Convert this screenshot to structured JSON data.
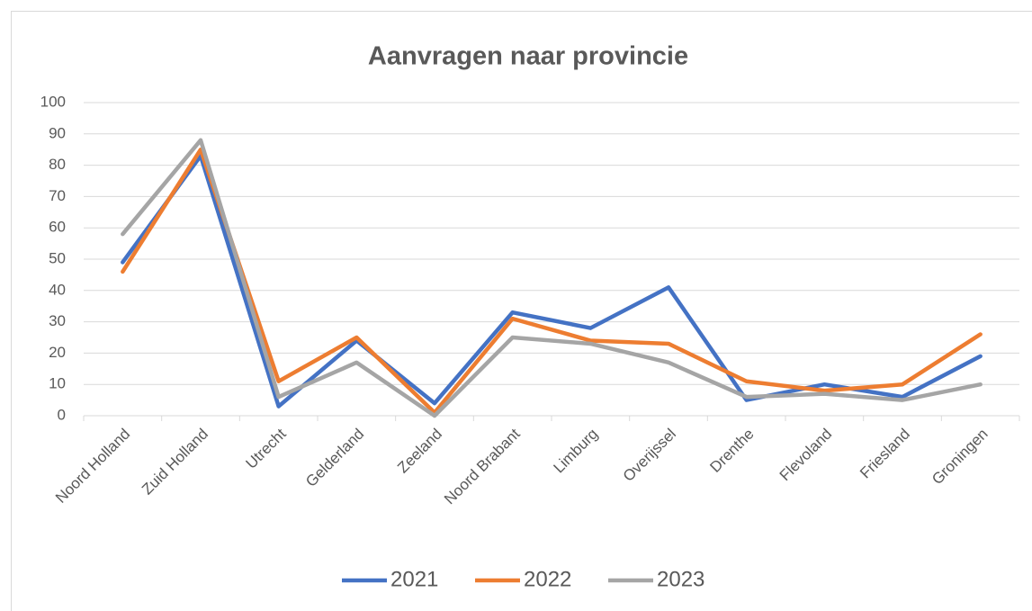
{
  "chart_data": {
    "type": "line",
    "title": "Aanvragen naar provincie",
    "categories": [
      "Noord Holland",
      "Zuid Holland",
      "Utrecht",
      "Gelderland",
      "Zeeland",
      "Noord Brabant",
      "Limburg",
      "Overijssel",
      "Drenthe",
      "Flevoland",
      "Friesland",
      "Groningen"
    ],
    "series": [
      {
        "name": "2021",
        "color": "#4472c4",
        "values": [
          49,
          83,
          3,
          24,
          4,
          33,
          28,
          41,
          5,
          10,
          6,
          19
        ]
      },
      {
        "name": "2022",
        "color": "#ed7d31",
        "values": [
          46,
          85,
          11,
          25,
          1,
          31,
          24,
          23,
          11,
          8,
          10,
          26
        ]
      },
      {
        "name": "2023",
        "color": "#a5a5a5",
        "values": [
          58,
          88,
          6,
          17,
          0,
          25,
          23,
          17,
          6,
          7,
          5,
          10
        ]
      }
    ],
    "ylim": [
      0,
      100
    ],
    "yticks": [
      0,
      10,
      20,
      30,
      40,
      50,
      60,
      70,
      80,
      90,
      100
    ],
    "grid": true,
    "legend": "bottom"
  }
}
